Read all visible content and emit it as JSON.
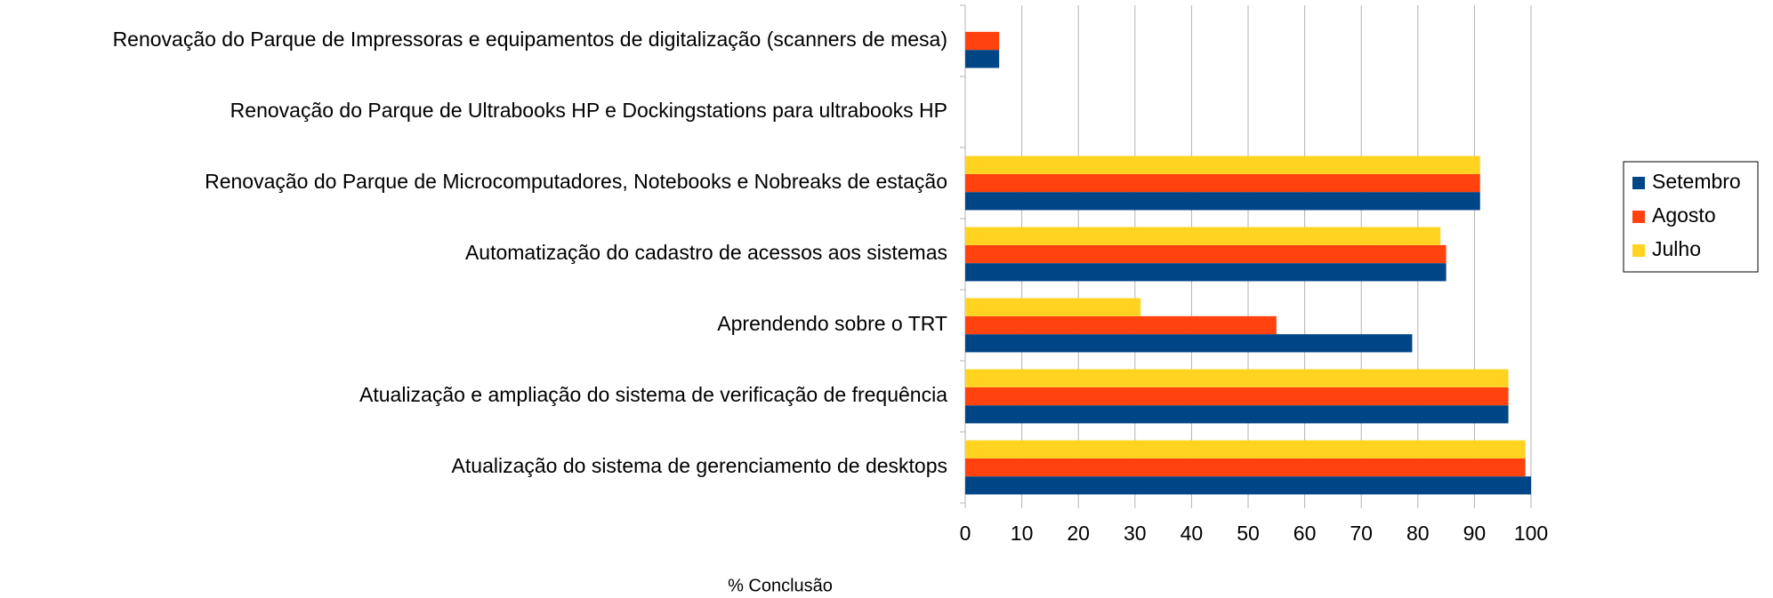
{
  "chart_data": {
    "type": "hbar",
    "categories": [
      "Renovação do Parque de Impressoras e equipamentos de digitalização (scanners de mesa)",
      "Renovação do Parque de Ultrabooks HP e Dockingstations para ultrabooks HP",
      "Renovação do Parque de Microcomputadores, Notebooks e Nobreaks de estação",
      "Automatização do cadastro de acessos aos sistemas",
      "Aprendendo sobre o TRT",
      "Atualização e ampliação do sistema de verificação de frequência",
      "Atualização do sistema de gerenciamento de desktops"
    ],
    "series": [
      {
        "name": "Setembro",
        "color": "#004586",
        "values": [
          6,
          0,
          91,
          85,
          79,
          96,
          100
        ]
      },
      {
        "name": "Agosto",
        "color": "#ff420e",
        "values": [
          6,
          0,
          91,
          85,
          55,
          96,
          99
        ]
      },
      {
        "name": "Julho",
        "color": "#ffd320",
        "values": [
          0,
          0,
          91,
          84,
          31,
          96,
          99
        ]
      }
    ],
    "xlabel": "% Conclusão",
    "xlim": [
      0,
      100
    ],
    "xticks": [
      0,
      10,
      20,
      30,
      40,
      50,
      60,
      70,
      80,
      90,
      100
    ],
    "grid": true,
    "legend": "right"
  }
}
